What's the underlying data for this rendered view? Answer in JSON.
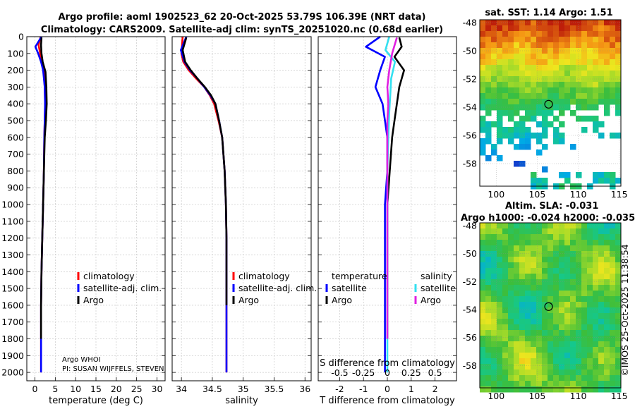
{
  "title_line1": "Argo profile: aoml 1902523_62 20-Oct-2025 53.79S 106.39E (NRT data)",
  "title_line2": "Climatology: CARS2009. Satellite-adj clim: synTS_20251020.nc (0.68d earlier)",
  "credit": "©IMOS 25-Oct-2025 11:38:54",
  "info_line1": "Argo WHOI",
  "info_line2": "PI: SUSAN WIJFFELS, STEVEN",
  "colors": {
    "climatology": "#ff0000",
    "satellite_adj": "#0000ff",
    "argo": "#000000",
    "sat_salinity": "#33e0f0",
    "argo_salinity": "#e020e0"
  },
  "chart_data": [
    {
      "type": "line",
      "name": "temperature-profile",
      "xlabel": "temperature (deg C)",
      "ylabel": "",
      "xlim": [
        -2,
        32
      ],
      "ylim": [
        2050,
        0
      ],
      "xticks": [
        0,
        5,
        10,
        15,
        20,
        25,
        30
      ],
      "yticks": [
        0,
        100,
        200,
        300,
        400,
        500,
        600,
        700,
        800,
        900,
        1000,
        1100,
        1200,
        1300,
        1400,
        1500,
        1600,
        1700,
        1800,
        1900,
        2000
      ],
      "legend": [
        "climatology",
        "satellite-adj. clim.",
        "Argo"
      ],
      "legend_position": "center-right",
      "series": [
        {
          "name": "climatology",
          "color": "#ff0000",
          "x": [
            1.4,
            0.9,
            1.3,
            1.8,
            2.2,
            2.4,
            2.5,
            2.4,
            2.3,
            2.2,
            2.0,
            1.8,
            1.6,
            1.5,
            1.5,
            1.5
          ],
          "y": [
            0,
            50,
            100,
            150,
            200,
            300,
            400,
            500,
            600,
            800,
            1000,
            1200,
            1400,
            1600,
            1800,
            2000
          ]
        },
        {
          "name": "satellite-adj. clim.",
          "color": "#0000ff",
          "x": [
            1.6,
            0.1,
            0.8,
            1.5,
            2.0,
            2.4,
            2.5,
            2.4,
            2.3,
            2.2,
            2.0,
            1.8,
            1.6,
            1.5,
            1.5,
            1.5
          ],
          "y": [
            0,
            60,
            100,
            150,
            200,
            300,
            400,
            500,
            600,
            800,
            1000,
            1200,
            1400,
            1600,
            1800,
            2000
          ]
        },
        {
          "name": "Argo",
          "color": "#000000",
          "x": [
            1.6,
            1.5,
            1.6,
            1.9,
            2.6,
            2.8,
            2.9,
            2.7,
            2.4,
            2.2,
            2.0,
            1.8,
            1.6,
            1.5,
            1.5
          ],
          "y": [
            5,
            50,
            100,
            150,
            210,
            300,
            400,
            500,
            600,
            800,
            1000,
            1200,
            1400,
            1600,
            1800
          ]
        }
      ]
    },
    {
      "type": "line",
      "name": "salinity-profile",
      "xlabel": "salinity",
      "ylabel": "",
      "xlim": [
        33.85,
        36.1
      ],
      "ylim": [
        2050,
        0
      ],
      "xticks": [
        34,
        34.5,
        35,
        35.5,
        36
      ],
      "xticklabels": [
        "34",
        "34.5",
        "35",
        "35.5",
        "36"
      ],
      "legend": [
        "climatology",
        "satellite-adj. clim.",
        "Argo"
      ],
      "legend_position": "center-right",
      "series": [
        {
          "name": "climatology",
          "color": "#ff0000",
          "x": [
            34.02,
            34.0,
            34.03,
            34.12,
            34.24,
            34.37,
            34.46,
            34.53,
            34.6,
            34.66,
            34.7,
            34.72,
            34.73,
            34.73,
            34.73
          ],
          "y": [
            0,
            100,
            150,
            200,
            250,
            300,
            350,
            400,
            500,
            600,
            800,
            1000,
            1200,
            1600,
            2000
          ]
        },
        {
          "name": "satellite-adj. clim.",
          "color": "#0000ff",
          "x": [
            34.08,
            33.99,
            34.05,
            34.14,
            34.26,
            34.37,
            34.47,
            34.55,
            34.61,
            34.66,
            34.7,
            34.72,
            34.73,
            34.73,
            34.73
          ],
          "y": [
            0,
            80,
            150,
            200,
            250,
            300,
            350,
            400,
            500,
            600,
            800,
            1000,
            1200,
            1600,
            2000
          ]
        },
        {
          "name": "Argo",
          "color": "#000000",
          "x": [
            34.08,
            34.02,
            34.06,
            34.15,
            34.26,
            34.38,
            34.48,
            34.55,
            34.61,
            34.66,
            34.7,
            34.72,
            34.73,
            34.73
          ],
          "y": [
            5,
            80,
            150,
            200,
            250,
            300,
            350,
            400,
            500,
            600,
            800,
            1000,
            1200,
            1600
          ]
        }
      ]
    },
    {
      "type": "line",
      "name": "difference-profile",
      "xlabel": "T difference from climatology",
      "xlabel_top": "S difference from climatology",
      "xlim": [
        -2.9,
        2.9
      ],
      "ylim": [
        2050,
        0
      ],
      "xticks": [
        -2,
        -1,
        0,
        1,
        2
      ],
      "top_xticks": [
        -0.5,
        -0.25,
        0,
        0.25,
        0.5
      ],
      "top_xticklabels": [
        "-0.5",
        "-0.25",
        "0",
        "0.25",
        "0.5"
      ],
      "legend_temperature_title": "temperature",
      "legend_salinity_title": "salinity",
      "legend_temperature": [
        "satellite",
        "Argo"
      ],
      "legend_salinity": [
        "satellite",
        "Argo"
      ],
      "series": [
        {
          "name": "temperature satellite",
          "color": "#0000ff",
          "x": [
            -0.3,
            -0.9,
            -0.1,
            -0.3,
            -0.5,
            -0.2,
            -0.1,
            0.0,
            0.0,
            -0.1,
            -0.1,
            -0.1,
            -0.1
          ],
          "y": [
            0,
            60,
            120,
            200,
            300,
            400,
            500,
            600,
            800,
            1000,
            1400,
            1800,
            2000
          ]
        },
        {
          "name": "temperature Argo",
          "color": "#000000",
          "x": [
            0.5,
            0.6,
            0.3,
            0.7,
            0.5,
            0.4,
            0.3,
            0.2,
            0.1,
            0.0,
            0.0,
            0.0
          ],
          "y": [
            5,
            60,
            120,
            200,
            300,
            400,
            500,
            600,
            800,
            1000,
            1400,
            1800
          ]
        },
        {
          "name": "salinity satellite",
          "color": "#33e0f0",
          "x": [
            0.02,
            -0.02,
            0.08,
            0.04,
            0.03,
            0.02,
            0.01,
            0.0,
            0.0,
            0.0,
            0.0
          ],
          "y": [
            0,
            80,
            150,
            250,
            350,
            450,
            600,
            800,
            1000,
            1400,
            2000
          ]
        },
        {
          "name": "salinity Argo",
          "color": "#e020e0",
          "x": [
            0.1,
            0.05,
            0.02,
            0.0,
            0.01,
            0.0,
            0.0,
            0.0,
            0.0,
            0.0,
            0.0
          ],
          "y": [
            5,
            100,
            200,
            300,
            400,
            500,
            700,
            900,
            1200,
            1600,
            1800
          ]
        }
      ]
    },
    {
      "type": "heatmap",
      "name": "sat-sst-map",
      "title": "sat. SST: 1.14 Argo: 1.51",
      "xticks": [
        100,
        105,
        110,
        115
      ],
      "yticks": [
        -48,
        -50,
        -52,
        -54,
        -56,
        -58
      ],
      "xlim": [
        98,
        115.2
      ],
      "ylim": [
        -59.6,
        -47.8
      ],
      "marker": {
        "lon": 106.39,
        "lat": -53.79
      }
    },
    {
      "type": "heatmap",
      "name": "altim-sla-map",
      "title": "Altim. SLA: -0.031",
      "subtitle": "Argo h1000: -0.024 h2000: -0.035",
      "xticks": [
        100,
        105,
        110,
        115
      ],
      "yticks": [
        -48,
        -50,
        -52,
        -54,
        -56,
        -58
      ],
      "xlim": [
        98,
        115.2
      ],
      "ylim": [
        -59.6,
        -47.8
      ],
      "marker": {
        "lon": 106.39,
        "lat": -53.79
      }
    }
  ]
}
